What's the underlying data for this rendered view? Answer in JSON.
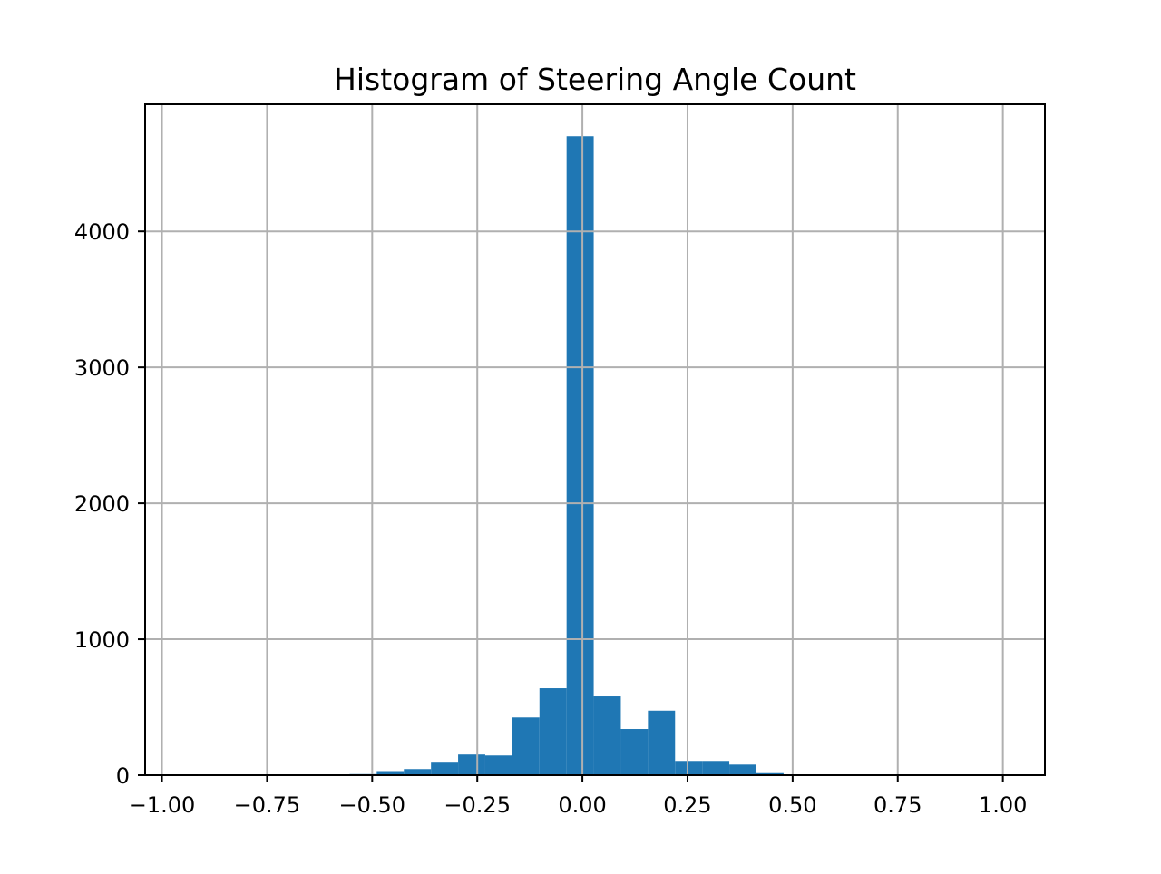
{
  "chart_data": {
    "type": "bar",
    "title": "Histogram of Steering Angle Count",
    "xlabel": "",
    "ylabel": "",
    "xlim": [
      -1.04,
      1.1
    ],
    "ylim": [
      0,
      4935
    ],
    "grid": true,
    "bar_color": "#1f77b4",
    "x_ticks": [
      {
        "value": -1.0,
        "label": "−1.00"
      },
      {
        "value": -0.75,
        "label": "−0.75"
      },
      {
        "value": -0.5,
        "label": "−0.50"
      },
      {
        "value": -0.25,
        "label": "−0.25"
      },
      {
        "value": 0.0,
        "label": "0.00"
      },
      {
        "value": 0.25,
        "label": "0.25"
      },
      {
        "value": 0.5,
        "label": "0.50"
      },
      {
        "value": 0.75,
        "label": "0.75"
      },
      {
        "value": 1.0,
        "label": "1.00"
      }
    ],
    "y_ticks": [
      {
        "value": 0,
        "label": "0"
      },
      {
        "value": 1000,
        "label": "1000"
      },
      {
        "value": 2000,
        "label": "2000"
      },
      {
        "value": 3000,
        "label": "3000"
      },
      {
        "value": 4000,
        "label": "4000"
      }
    ],
    "bins": [
      {
        "x0": -0.5537,
        "x1": -0.4892,
        "count": 8
      },
      {
        "x0": -0.4892,
        "x1": -0.4246,
        "count": 30
      },
      {
        "x0": -0.4246,
        "x1": -0.3601,
        "count": 45
      },
      {
        "x0": -0.3601,
        "x1": -0.2956,
        "count": 92
      },
      {
        "x0": -0.2956,
        "x1": -0.2311,
        "count": 152
      },
      {
        "x0": -0.2311,
        "x1": -0.1666,
        "count": 145
      },
      {
        "x0": -0.1666,
        "x1": -0.1021,
        "count": 425
      },
      {
        "x0": -0.1021,
        "x1": -0.0376,
        "count": 640
      },
      {
        "x0": -0.0376,
        "x1": 0.0269,
        "count": 4700
      },
      {
        "x0": 0.0269,
        "x1": 0.0914,
        "count": 580
      },
      {
        "x0": 0.0914,
        "x1": 0.1559,
        "count": 340
      },
      {
        "x0": 0.1559,
        "x1": 0.2204,
        "count": 475
      },
      {
        "x0": 0.2204,
        "x1": 0.2849,
        "count": 105
      },
      {
        "x0": 0.2849,
        "x1": 0.3494,
        "count": 105
      },
      {
        "x0": 0.3494,
        "x1": 0.4139,
        "count": 78
      },
      {
        "x0": 0.4139,
        "x1": 0.4785,
        "count": 15
      },
      {
        "x0": 0.4785,
        "x1": 0.543,
        "count": 6
      }
    ]
  }
}
